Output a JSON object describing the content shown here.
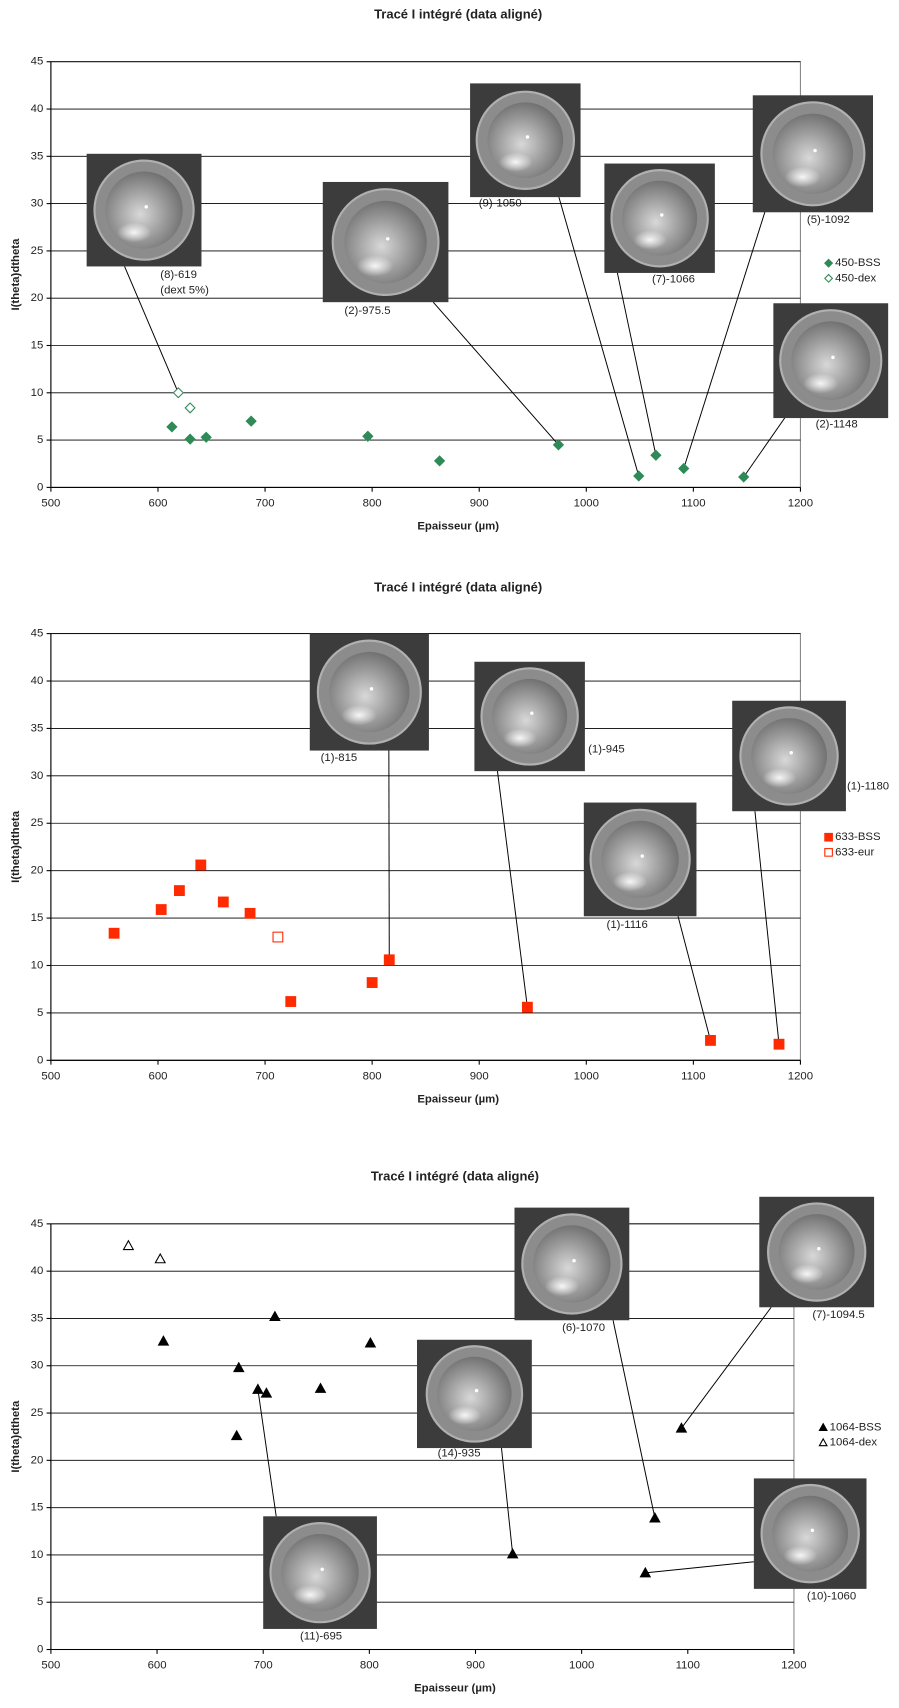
{
  "chart_data": [
    {
      "type": "scatter",
      "title": "Tracé I intégré (data aligné)",
      "x_label": "Epaisseur (µm)",
      "y_label": "I(theta)dtheta",
      "xlim": [
        500,
        1200
      ],
      "xticks": [
        500,
        600,
        700,
        800,
        900,
        1000,
        1100,
        1200
      ],
      "ylim": [
        0,
        45
      ],
      "yticks": [
        0,
        5,
        10,
        15,
        20,
        25,
        30,
        35,
        40,
        45
      ],
      "grid": true,
      "legend": "right",
      "series": [
        {
          "name": "450-BSS",
          "color": "#2e8b57",
          "marker": "diamond",
          "filled": true,
          "x": [
            613,
            630,
            645,
            687,
            796,
            863,
            974,
            1049,
            1065,
            1091,
            1147
          ],
          "values": [
            6.4,
            5.1,
            5.3,
            7.0,
            5.4,
            2.8,
            4.5,
            1.2,
            3.4,
            2.0,
            1.1
          ]
        },
        {
          "name": "450-dex",
          "color": "#2e8b57",
          "marker": "diamond",
          "filled": false,
          "x": [
            619,
            630
          ],
          "values": [
            10.0,
            8.4
          ]
        }
      ],
      "annotations": [
        "(8)-619",
        "(dext 5%)",
        "(2)-975.5",
        "(9)-1050",
        "(7)-1066",
        "(5)-1092",
        "(2)-1148"
      ]
    },
    {
      "type": "scatter",
      "title": "Tracé I intégré (data aligné)",
      "x_label": "Epaisseur (µm)",
      "y_label": "I(theta)dtheta",
      "xlim": [
        500,
        1200
      ],
      "xticks": [
        500,
        600,
        700,
        800,
        900,
        1000,
        1100,
        1200
      ],
      "ylim": [
        0,
        45
      ],
      "yticks": [
        0,
        5,
        10,
        15,
        20,
        25,
        30,
        35,
        40,
        45
      ],
      "grid": true,
      "legend": "right",
      "series": [
        {
          "name": "633-BSS",
          "color": "#ff2a00",
          "marker": "square",
          "filled": true,
          "x": [
            559,
            603,
            620,
            640,
            661,
            686,
            724,
            800,
            816,
            945,
            1116,
            1180
          ],
          "values": [
            13.4,
            15.9,
            17.9,
            20.6,
            16.7,
            15.5,
            6.2,
            8.2,
            10.6,
            5.6,
            2.1,
            1.7
          ]
        },
        {
          "name": "633-eur",
          "color": "#ff2a00",
          "marker": "square",
          "filled": false,
          "x": [
            712
          ],
          "values": [
            13.0
          ]
        }
      ],
      "annotations": [
        "(1)-815",
        "(1)-945",
        "(1)-1180",
        "(1)-1116"
      ]
    },
    {
      "type": "scatter",
      "title": "Tracé I intégré (data aligné)",
      "x_label": "Epaisseur (µm)",
      "y_label": "I(theta)dtheta",
      "xlim": [
        500,
        1200
      ],
      "xticks": [
        500,
        600,
        700,
        800,
        900,
        1000,
        1100,
        1200
      ],
      "ylim": [
        0,
        45
      ],
      "yticks": [
        0,
        5,
        10,
        15,
        20,
        25,
        30,
        35,
        40,
        45
      ],
      "grid": true,
      "legend": "right",
      "series": [
        {
          "name": "1064-BSS",
          "color": "#000000",
          "marker": "triangle",
          "filled": true,
          "x": [
            606,
            677,
            675,
            695,
            703,
            711,
            754,
            801,
            935,
            1060,
            1069,
            1094
          ],
          "values": [
            32.6,
            29.8,
            22.6,
            27.5,
            27.1,
            35.2,
            27.6,
            32.4,
            10.1,
            8.1,
            13.9,
            23.4
          ]
        },
        {
          "name": "1064-dex",
          "color": "#000000",
          "marker": "triangle",
          "filled": false,
          "x": [
            573,
            603
          ],
          "values": [
            42.7,
            41.3
          ]
        }
      ],
      "annotations": [
        "(6)-1070",
        "(7)-1094.5",
        "(14)-935",
        "(10)-1060",
        "(11)-695"
      ]
    }
  ]
}
